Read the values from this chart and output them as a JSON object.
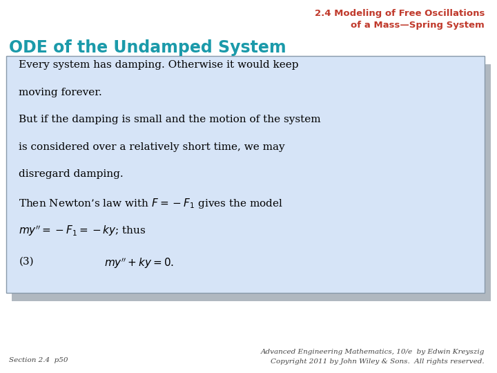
{
  "bg_color": "#ffffff",
  "title_line1": "2.4 Modeling of Free Oscillations",
  "title_line2": "of a Mass—Spring System",
  "title_color": "#C0392B",
  "subtitle": "ODE of the Undamped System",
  "subtitle_color": "#1B9AAA",
  "box_bg_color": "#D6E4F7",
  "box_border_color": "#8899AA",
  "shadow_color": "#B0B8C0",
  "body_lines": [
    "Every system has damping. Otherwise it would keep",
    "moving forever.",
    "But if the damping is small and the motion of the system",
    "is considered over a relatively short time, we may",
    "disregard damping.",
    "Then Newton’s law with $F = -F_1$ gives the model",
    "$my'' = -F_1 = -ky$; thus"
  ],
  "equation_label": "(3)",
  "equation": "$my'' + ky = 0.$",
  "footer_left": "Section 2.4  p50",
  "footer_right_line1": "Advanced Engineering Mathematics, 10/e  by Edwin Kreyszig",
  "footer_right_line2": "Copyright 2011 by John Wiley & Sons.  All rights reserved.",
  "footer_color": "#444444",
  "title_fontsize": 9.5,
  "subtitle_fontsize": 17,
  "body_fontsize": 11,
  "footer_fontsize": 7.5
}
